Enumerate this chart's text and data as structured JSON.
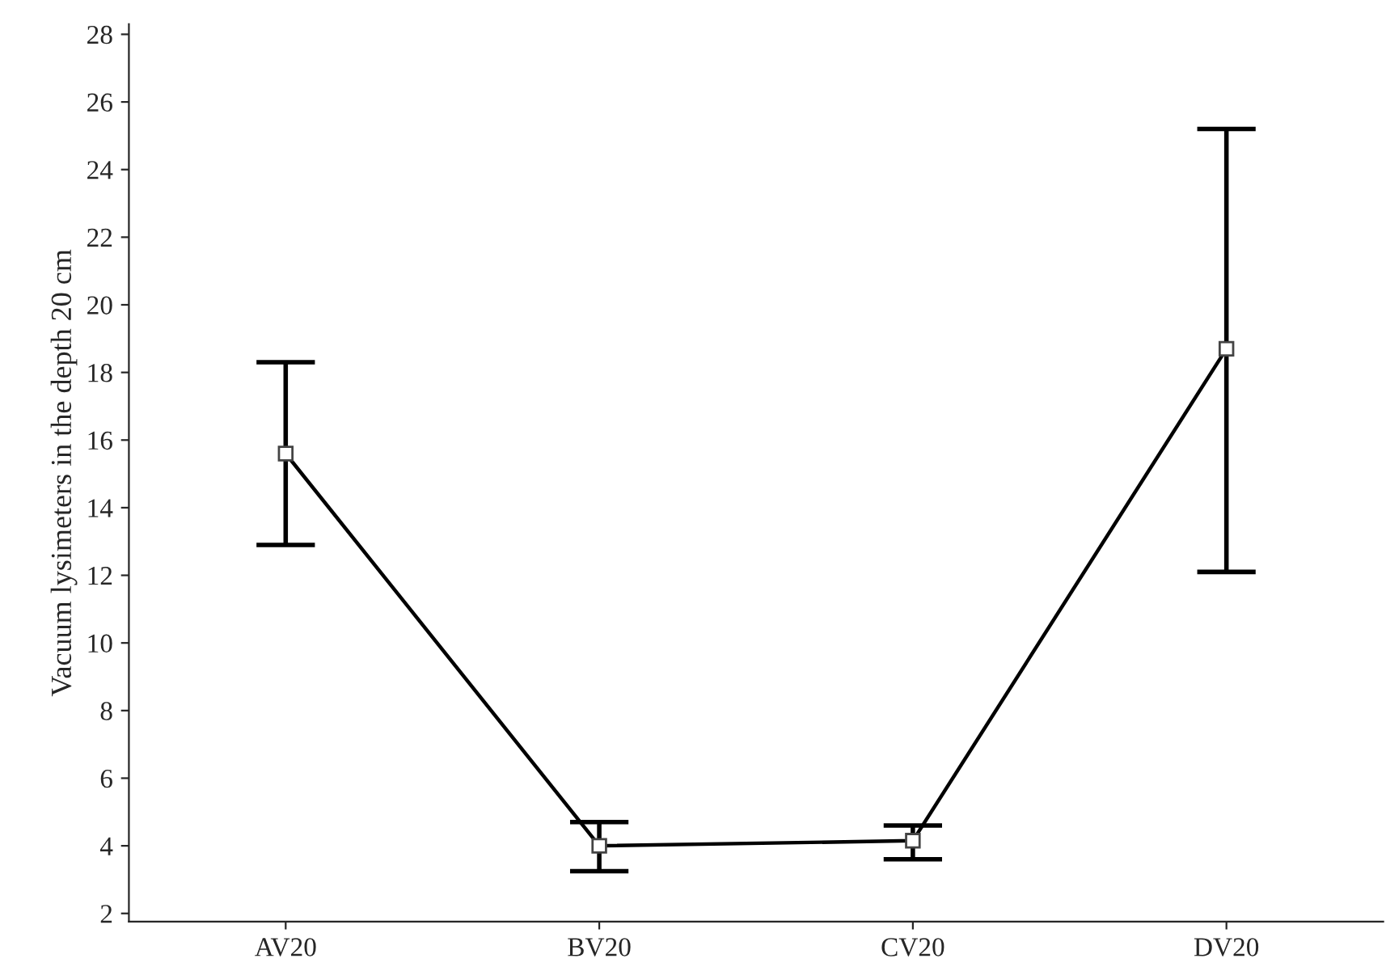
{
  "chart_data": {
    "type": "line",
    "ylabel": "Vacuum lysimeters in the depth 20 cm",
    "categories": [
      "AV20",
      "BV20",
      "CV20",
      "DV20"
    ],
    "series": [
      {
        "color": "#000000",
        "values": [
          15.6,
          4.0,
          4.15,
          18.7
        ],
        "errors": [
          [
            12.9,
            18.3
          ],
          [
            3.25,
            4.7
          ],
          [
            3.6,
            4.6
          ],
          [
            12.1,
            25.2
          ]
        ]
      }
    ],
    "ylim": [
      1.76,
      28.3
    ],
    "yticks": [
      2,
      4,
      6,
      8,
      10,
      12,
      14,
      16,
      18,
      20,
      22,
      24,
      26,
      28
    ],
    "marker": "square",
    "line_style": "solid",
    "grid": false,
    "legend": false
  }
}
